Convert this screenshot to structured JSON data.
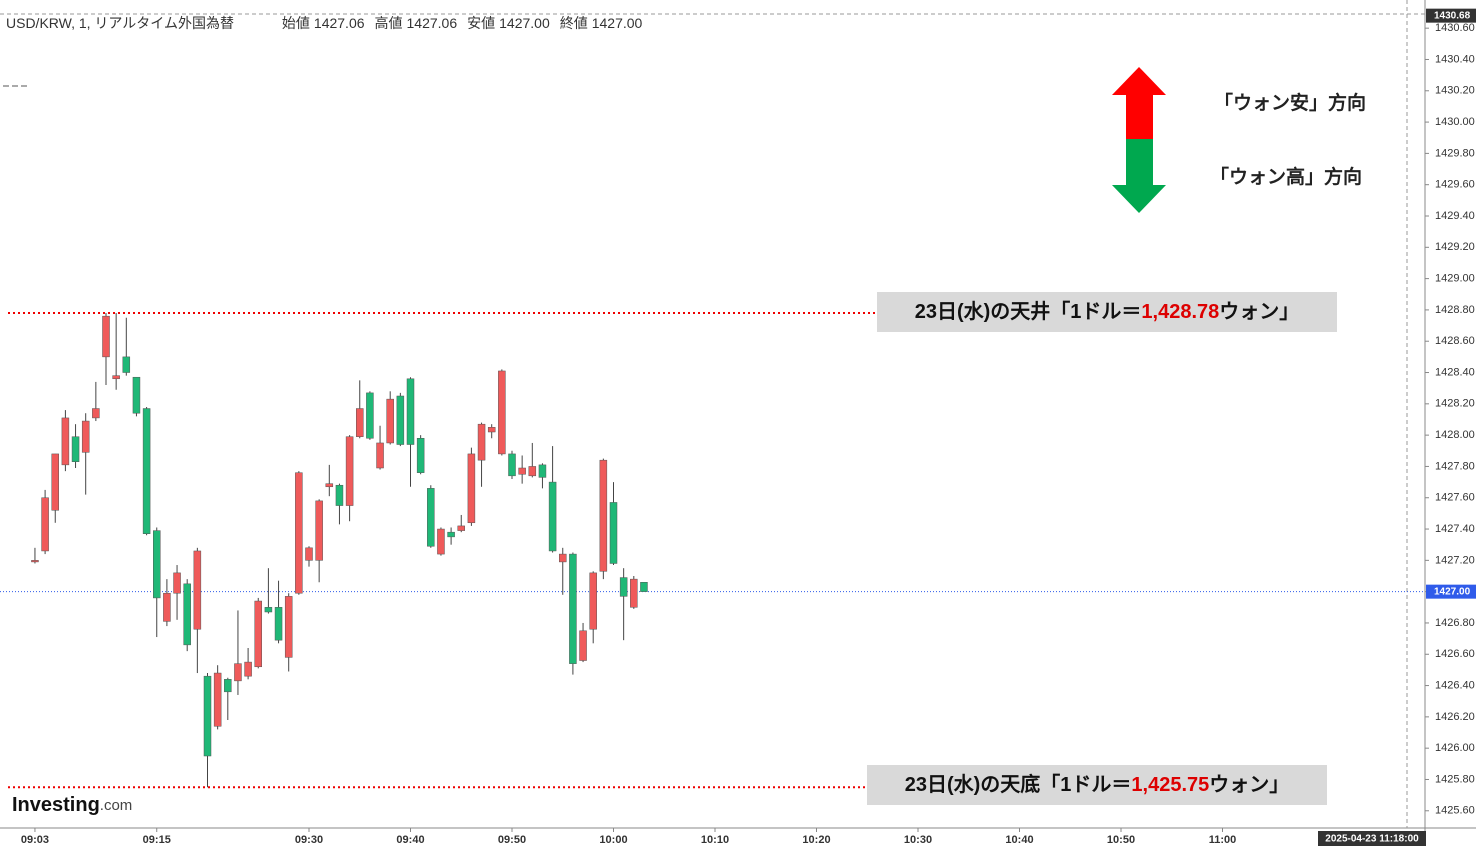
{
  "header": {
    "symbol": "USD/KRW, 1, リアルタイム外国為替",
    "ohlc": [
      {
        "label": "始値",
        "value": "1427.06"
      },
      {
        "label": "高値",
        "value": "1427.06"
      },
      {
        "label": "安値",
        "value": "1427.00"
      },
      {
        "label": "終値",
        "value": "1427.00"
      }
    ]
  },
  "direction_legend": {
    "up": "「ウォン安」方向",
    "down": "「ウォン高」方向"
  },
  "logo": {
    "brand": "Investing",
    "suffix": ".com"
  },
  "timestamp": "2025-04-23 11:18:00",
  "chart_data": {
    "type": "candlestick",
    "title": "USD/KRW, 1, リアルタイム外国為替",
    "x": [
      "09:03",
      "09:04",
      "09:05",
      "09:06",
      "09:07",
      "09:08",
      "09:09",
      "09:10",
      "09:11",
      "09:12",
      "09:13",
      "09:14",
      "09:15",
      "09:16",
      "09:17",
      "09:18",
      "09:19",
      "09:20",
      "09:21",
      "09:22",
      "09:23",
      "09:24",
      "09:25",
      "09:26",
      "09:27",
      "09:28",
      "09:29",
      "09:30",
      "09:31",
      "09:32",
      "09:33",
      "09:34",
      "09:35",
      "09:36",
      "09:37",
      "09:38",
      "09:39",
      "09:40",
      "09:41",
      "09:42",
      "09:43",
      "09:44",
      "09:45",
      "09:46",
      "09:47",
      "09:48",
      "09:49",
      "09:50",
      "09:51",
      "09:52",
      "09:53",
      "09:54",
      "09:55",
      "09:56",
      "09:57",
      "09:58",
      "09:59",
      "10:00",
      "10:01",
      "10:02",
      "10:03"
    ],
    "open": [
      1427.19,
      1427.26,
      1427.52,
      1427.81,
      1427.99,
      1427.89,
      1428.11,
      1428.5,
      1428.36,
      1428.5,
      1428.37,
      1428.17,
      1427.39,
      1426.81,
      1426.99,
      1427.05,
      1426.76,
      1426.46,
      1426.14,
      1426.44,
      1426.43,
      1426.46,
      1426.52,
      1426.9,
      1426.9,
      1426.58,
      1426.99,
      1427.2,
      1427.2,
      1427.67,
      1427.68,
      1427.55,
      1427.99,
      1428.27,
      1427.79,
      1427.95,
      1428.25,
      1428.36,
      1427.98,
      1427.66,
      1427.24,
      1427.38,
      1427.39,
      1427.44,
      1427.84,
      1428.02,
      1427.88,
      1427.88,
      1427.75,
      1427.74,
      1427.81,
      1427.7,
      1427.19,
      1427.24,
      1426.56,
      1426.76,
      1427.13,
      1427.57,
      1427.09,
      1426.9,
      1427.06
    ],
    "high": [
      1427.28,
      1427.65,
      1427.88,
      1428.16,
      1428.07,
      1428.14,
      1428.34,
      1428.78,
      1428.78,
      1428.75,
      1428.37,
      1428.18,
      1427.41,
      1427.08,
      1427.17,
      1427.08,
      1427.28,
      1426.48,
      1426.53,
      1426.45,
      1426.88,
      1426.64,
      1426.96,
      1427.15,
      1427.07,
      1426.99,
      1427.77,
      1427.29,
      1427.59,
      1427.81,
      1427.69,
      1428.0,
      1428.35,
      1428.28,
      1428.06,
      1428.28,
      1428.27,
      1428.37,
      1428.0,
      1427.68,
      1427.41,
      1427.41,
      1427.49,
      1427.92,
      1428.08,
      1428.07,
      1428.42,
      1427.9,
      1427.87,
      1427.95,
      1427.82,
      1427.93,
      1427.28,
      1427.25,
      1426.8,
      1427.13,
      1427.85,
      1427.7,
      1427.15,
      1427.1,
      1427.06
    ],
    "low": [
      1427.18,
      1427.24,
      1427.44,
      1427.77,
      1427.79,
      1427.62,
      1428.09,
      1428.32,
      1428.29,
      1428.38,
      1428.12,
      1427.36,
      1426.71,
      1426.78,
      1426.82,
      1426.62,
      1426.48,
      1425.75,
      1426.12,
      1426.18,
      1426.34,
      1426.44,
      1426.51,
      1426.86,
      1426.67,
      1426.49,
      1426.98,
      1427.16,
      1427.06,
      1427.61,
      1427.43,
      1427.45,
      1427.98,
      1427.97,
      1427.78,
      1427.94,
      1427.93,
      1427.67,
      1427.75,
      1427.28,
      1427.23,
      1427.3,
      1427.38,
      1427.42,
      1427.67,
      1427.98,
      1427.87,
      1427.72,
      1427.69,
      1427.73,
      1427.66,
      1427.25,
      1426.98,
      1426.47,
      1426.55,
      1426.67,
      1427.08,
      1427.17,
      1426.69,
      1426.89,
      1427.0
    ],
    "close": [
      1427.2,
      1427.6,
      1427.88,
      1428.11,
      1427.83,
      1428.09,
      1428.17,
      1428.76,
      1428.38,
      1428.4,
      1428.14,
      1427.37,
      1426.96,
      1426.99,
      1427.12,
      1426.66,
      1427.26,
      1425.95,
      1426.48,
      1426.36,
      1426.54,
      1426.55,
      1426.94,
      1426.87,
      1426.69,
      1426.97,
      1427.76,
      1427.28,
      1427.58,
      1427.69,
      1427.55,
      1427.99,
      1428.17,
      1427.98,
      1427.95,
      1428.23,
      1427.94,
      1427.94,
      1427.76,
      1427.29,
      1427.4,
      1427.35,
      1427.42,
      1427.88,
      1428.07,
      1428.05,
      1428.41,
      1427.74,
      1427.79,
      1427.8,
      1427.73,
      1427.26,
      1427.24,
      1426.54,
      1426.75,
      1427.12,
      1427.84,
      1427.18,
      1426.97,
      1427.08,
      1427.0
    ],
    "up_color": "#ef5a5a",
    "down_color": "#1fb877",
    "xlim": [
      "09:00",
      "11:20"
    ],
    "xticks": [
      "09:03",
      "09:15",
      "09:30",
      "09:40",
      "09:50",
      "10:00",
      "10:10",
      "10:20",
      "10:30",
      "10:40",
      "10:50",
      "11:00"
    ],
    "ylim": [
      1425.49,
      1430.78
    ],
    "yticks": [
      {
        "value": 1425.6,
        "label": "1425.60"
      },
      {
        "value": 1425.8,
        "label": "1425.80"
      },
      {
        "value": 1426.0,
        "label": "1426.00"
      },
      {
        "value": 1426.2,
        "label": "1426.20"
      },
      {
        "value": 1426.4,
        "label": "1426.40"
      },
      {
        "value": 1426.6,
        "label": "1426.60"
      },
      {
        "value": 1426.8,
        "label": "1426.80"
      },
      {
        "value": 1427.0,
        "label": "1427.00"
      },
      {
        "value": 1427.2,
        "label": "1427.20"
      },
      {
        "value": 1427.4,
        "label": "1427.40"
      },
      {
        "value": 1427.6,
        "label": "1427.60"
      },
      {
        "value": 1427.8,
        "label": "1427.80"
      },
      {
        "value": 1428.0,
        "label": "1428.00"
      },
      {
        "value": 1428.2,
        "label": "1428.20"
      },
      {
        "value": 1428.4,
        "label": "1428.40"
      },
      {
        "value": 1428.6,
        "label": "1428.60"
      },
      {
        "value": 1428.8,
        "label": "1428.80"
      },
      {
        "value": 1429.0,
        "label": "1429.00"
      },
      {
        "value": 1429.2,
        "label": "1429.20"
      },
      {
        "value": 1429.4,
        "label": "1429.40"
      },
      {
        "value": 1429.6,
        "label": "1429.60"
      },
      {
        "value": 1429.8,
        "label": "1429.80"
      },
      {
        "value": 1430.0,
        "label": "1430.00"
      },
      {
        "value": 1430.2,
        "label": "1430.20"
      },
      {
        "value": 1430.4,
        "label": "1430.40"
      },
      {
        "value": 1430.6,
        "label": "1430.60"
      }
    ],
    "price_line": {
      "value": 1427.0,
      "label": "1427.00",
      "color": "#2f5bea"
    },
    "top_marker": {
      "value": 1430.68,
      "label": "1430.68"
    },
    "annotations": [
      {
        "value": 1428.78,
        "prefix": "23日(水)の天井「1ドル＝",
        "value_label": "1,428.78",
        "suffix": "ウォン」"
      },
      {
        "value": 1425.75,
        "prefix": "23日(水)の天底「1ドル＝",
        "value_label": "1,425.75",
        "suffix": "ウォン」"
      }
    ]
  }
}
